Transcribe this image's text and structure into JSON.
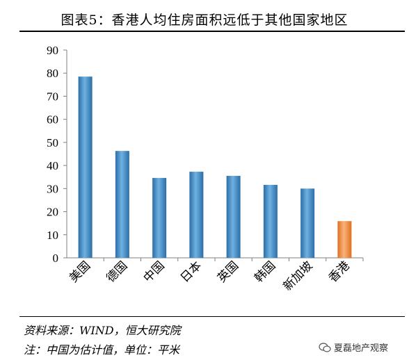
{
  "title": "图表5：香港人均住房面积远低于其他国家地区",
  "source_note": "资料来源：WIND，恒大研究院",
  "unit_note": "注：中国为估计值，单位：平米",
  "watermark": "夏磊地产观察",
  "colors": {
    "bar": "#3a86c0",
    "bar_highlight": "#f08a3c"
  },
  "chart_data": {
    "type": "bar",
    "title": "图表5：香港人均住房面积远低于其他国家地区",
    "xlabel": "",
    "ylabel": "",
    "categories": [
      "美国",
      "德国",
      "中国",
      "日本",
      "英国",
      "韩国",
      "新加坡",
      "香港"
    ],
    "values": [
      78.5,
      46.3,
      34.6,
      37.3,
      35.5,
      31.6,
      30.0,
      15.9
    ],
    "highlight": "香港",
    "ylim": [
      0,
      90
    ],
    "yticks": [
      0,
      10,
      20,
      30,
      40,
      50,
      60,
      70,
      80,
      90
    ],
    "grid": false,
    "legend": "none"
  }
}
